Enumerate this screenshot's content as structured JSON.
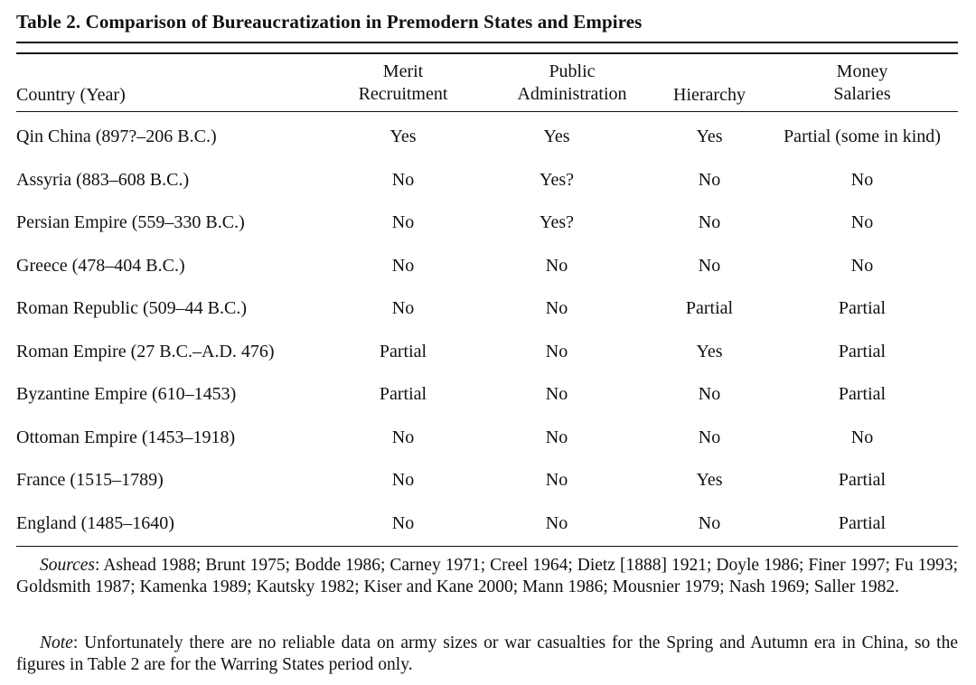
{
  "title": "Table 2.  Comparison of Bureaucratization in Premodern States and Empires",
  "headers": {
    "country": "Country (Year)",
    "merit_1": "Merit",
    "merit_2": "Recruitment",
    "public_1": "Public",
    "public_2": "Administration",
    "hierarchy": "Hierarchy",
    "money_1": "Money",
    "money_2": "Salaries"
  },
  "rows": [
    {
      "country": "Qin China (897?–206 B.C.)",
      "merit": "Yes",
      "public": "Yes",
      "hierarchy": "Yes",
      "money": "Partial (some in kind)"
    },
    {
      "country": "Assyria (883–608 B.C.)",
      "merit": "No",
      "public": "Yes?",
      "hierarchy": "No",
      "money": "No"
    },
    {
      "country": "Persian Empire (559–330 B.C.)",
      "merit": "No",
      "public": "Yes?",
      "hierarchy": "No",
      "money": "No"
    },
    {
      "country": "Greece (478–404 B.C.)",
      "merit": "No",
      "public": "No",
      "hierarchy": "No",
      "money": "No"
    },
    {
      "country": "Roman Republic (509–44 B.C.)",
      "merit": "No",
      "public": "No",
      "hierarchy": "Partial",
      "money": "Partial"
    },
    {
      "country": "Roman Empire (27 B.C.–A.D. 476)",
      "merit": "Partial",
      "public": "No",
      "hierarchy": "Yes",
      "money": "Partial"
    },
    {
      "country": "Byzantine Empire (610–1453)",
      "merit": "Partial",
      "public": "No",
      "hierarchy": "No",
      "money": "Partial"
    },
    {
      "country": "Ottoman Empire (1453–1918)",
      "merit": "No",
      "public": "No",
      "hierarchy": "No",
      "money": "No"
    },
    {
      "country": "France (1515–1789)",
      "merit": "No",
      "public": "No",
      "hierarchy": "Yes",
      "money": "Partial"
    },
    {
      "country": "England (1485–1640)",
      "merit": "No",
      "public": "No",
      "hierarchy": "No",
      "money": "Partial"
    }
  ],
  "sources": {
    "label": "Sources",
    "text": ": Ashead 1988; Brunt 1975; Bodde 1986; Carney 1971; Creel 1964; Dietz [1888] 1921; Doyle 1986; Finer 1997; Fu 1993; Goldsmith 1987; Kamenka 1989; Kautsky 1982; Kiser and Kane 2000; Mann 1986; Mousnier 1979; Nash 1969; Saller 1982."
  },
  "note": {
    "label": "Note",
    "text": ": Unfortunately there are no reliable data on army sizes or war casualties for the Spring and Autumn era in China, so the figures in Table 2 are for the Warring States period only."
  }
}
